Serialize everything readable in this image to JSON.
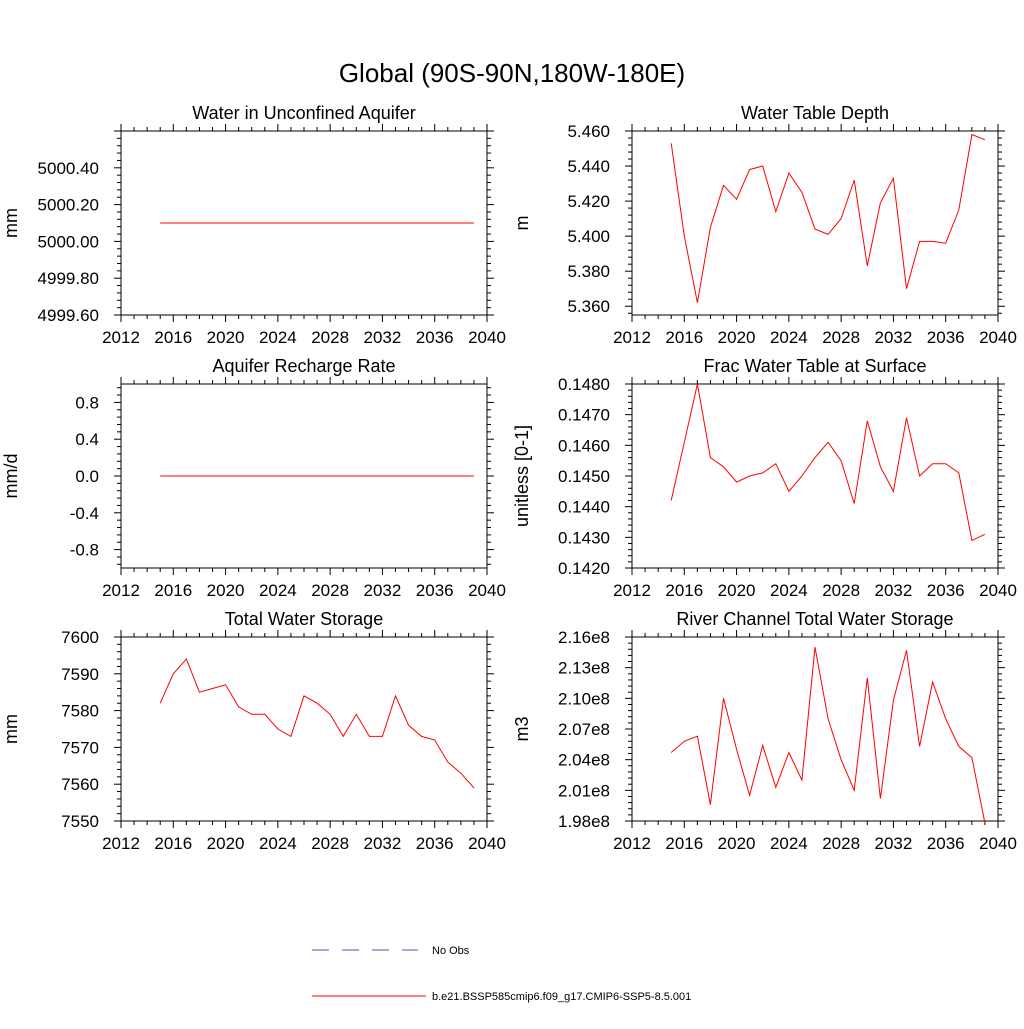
{
  "figure": {
    "title": "Global (90S-90N,180W-180E)"
  },
  "chart_data": [
    {
      "type": "line",
      "title": "Water in Unconfined Aquifer",
      "xlabel": "",
      "ylabel": "mm",
      "xlim": [
        2012,
        2040
      ],
      "ylim": [
        4999.6,
        5000.6
      ],
      "xticks": [
        2012,
        2016,
        2020,
        2024,
        2028,
        2032,
        2036,
        2040
      ],
      "yticks": [
        4999.6,
        4999.8,
        5000.0,
        5000.2,
        5000.4
      ],
      "ytick_labels": [
        "4999.60",
        "4999.80",
        "5000.00",
        "5000.20",
        "5000.40"
      ],
      "grid": false,
      "series": [
        {
          "color": "#ff0000",
          "x": [
            2015,
            2016,
            2017,
            2018,
            2019,
            2020,
            2021,
            2022,
            2023,
            2024,
            2025,
            2026,
            2027,
            2028,
            2029,
            2030,
            2031,
            2032,
            2033,
            2034,
            2035,
            2036,
            2037,
            2038,
            2039
          ],
          "y": [
            5000.1,
            5000.1,
            5000.1,
            5000.1,
            5000.1,
            5000.1,
            5000.1,
            5000.1,
            5000.1,
            5000.1,
            5000.1,
            5000.1,
            5000.1,
            5000.1,
            5000.1,
            5000.1,
            5000.1,
            5000.1,
            5000.1,
            5000.1,
            5000.1,
            5000.1,
            5000.1,
            5000.1,
            5000.1
          ]
        }
      ]
    },
    {
      "type": "line",
      "title": "Water Table Depth",
      "xlabel": "",
      "ylabel": "m",
      "xlim": [
        2012,
        2040
      ],
      "ylim": [
        5.355,
        5.46
      ],
      "xticks": [
        2012,
        2016,
        2020,
        2024,
        2028,
        2032,
        2036,
        2040
      ],
      "yticks": [
        5.36,
        5.38,
        5.4,
        5.42,
        5.44,
        5.46
      ],
      "ytick_labels": [
        "5.360",
        "5.380",
        "5.400",
        "5.420",
        "5.440",
        "5.460"
      ],
      "grid": false,
      "series": [
        {
          "color": "#ff0000",
          "x": [
            2015,
            2016,
            2017,
            2018,
            2019,
            2020,
            2021,
            2022,
            2023,
            2024,
            2025,
            2026,
            2027,
            2028,
            2029,
            2030,
            2031,
            2032,
            2033,
            2034,
            2035,
            2036,
            2037,
            2038,
            2039
          ],
          "y": [
            5.453,
            5.4,
            5.362,
            5.405,
            5.429,
            5.421,
            5.438,
            5.44,
            5.414,
            5.436,
            5.425,
            5.404,
            5.401,
            5.41,
            5.432,
            5.383,
            5.419,
            5.433,
            5.37,
            5.397,
            5.397,
            5.396,
            5.415,
            5.458,
            5.455
          ]
        }
      ]
    },
    {
      "type": "line",
      "title": "Aquifer Recharge Rate",
      "xlabel": "",
      "ylabel": "mm/d",
      "xlim": [
        2012,
        2040
      ],
      "ylim": [
        -1.0,
        1.0
      ],
      "xticks": [
        2012,
        2016,
        2020,
        2024,
        2028,
        2032,
        2036,
        2040
      ],
      "yticks": [
        -0.8,
        -0.4,
        0.0,
        0.4,
        0.8
      ],
      "ytick_labels": [
        "-0.8",
        "-0.4",
        "0.0",
        "0.4",
        "0.8"
      ],
      "grid": false,
      "series": [
        {
          "color": "#ff0000",
          "x": [
            2015,
            2016,
            2017,
            2018,
            2019,
            2020,
            2021,
            2022,
            2023,
            2024,
            2025,
            2026,
            2027,
            2028,
            2029,
            2030,
            2031,
            2032,
            2033,
            2034,
            2035,
            2036,
            2037,
            2038,
            2039
          ],
          "y": [
            0,
            0,
            0,
            0,
            0,
            0,
            0,
            0,
            0,
            0,
            0,
            0,
            0,
            0,
            0,
            0,
            0,
            0,
            0,
            0,
            0,
            0,
            0,
            0,
            0
          ]
        }
      ]
    },
    {
      "type": "line",
      "title": "Frac Water Table at Surface",
      "xlabel": "",
      "ylabel": "unitless [0-1]",
      "xlim": [
        2012,
        2040
      ],
      "ylim": [
        0.142,
        0.148
      ],
      "xticks": [
        2012,
        2016,
        2020,
        2024,
        2028,
        2032,
        2036,
        2040
      ],
      "yticks": [
        0.142,
        0.143,
        0.144,
        0.145,
        0.146,
        0.147,
        0.148
      ],
      "ytick_labels": [
        "0.1420",
        "0.1430",
        "0.1440",
        "0.1450",
        "0.1460",
        "0.1470",
        "0.1480"
      ],
      "grid": false,
      "series": [
        {
          "color": "#ff0000",
          "x": [
            2015,
            2016,
            2017,
            2018,
            2019,
            2020,
            2021,
            2022,
            2023,
            2024,
            2025,
            2026,
            2027,
            2028,
            2029,
            2030,
            2031,
            2032,
            2033,
            2034,
            2035,
            2036,
            2037,
            2038,
            2039
          ],
          "y": [
            0.1442,
            0.1461,
            0.148,
            0.1456,
            0.1453,
            0.1448,
            0.145,
            0.1451,
            0.1454,
            0.1445,
            0.145,
            0.1456,
            0.1461,
            0.1455,
            0.1441,
            0.1468,
            0.1453,
            0.1445,
            0.1469,
            0.145,
            0.1454,
            0.1454,
            0.1451,
            0.1429,
            0.1431
          ]
        }
      ]
    },
    {
      "type": "line",
      "title": "Total Water Storage",
      "xlabel": "",
      "ylabel": "mm",
      "xlim": [
        2012,
        2040
      ],
      "ylim": [
        7550,
        7600
      ],
      "xticks": [
        2012,
        2016,
        2020,
        2024,
        2028,
        2032,
        2036,
        2040
      ],
      "yticks": [
        7550,
        7560,
        7570,
        7580,
        7590,
        7600
      ],
      "ytick_labels": [
        "7550",
        "7560",
        "7570",
        "7580",
        "7590",
        "7600"
      ],
      "grid": false,
      "series": [
        {
          "color": "#ff0000",
          "x": [
            2015,
            2016,
            2017,
            2018,
            2019,
            2020,
            2021,
            2022,
            2023,
            2024,
            2025,
            2026,
            2027,
            2028,
            2029,
            2030,
            2031,
            2032,
            2033,
            2034,
            2035,
            2036,
            2037,
            2038,
            2039
          ],
          "y": [
            7582,
            7590,
            7594,
            7585,
            7586,
            7587,
            7581,
            7579,
            7579,
            7575,
            7573,
            7584,
            7582,
            7579,
            7573,
            7579,
            7573,
            7573,
            7584,
            7576,
            7573,
            7572,
            7566,
            7563,
            7559
          ]
        }
      ]
    },
    {
      "type": "line",
      "title": "River Channel Total Water Storage",
      "xlabel": "",
      "ylabel": "m3",
      "xlim": [
        2012,
        2040
      ],
      "ylim": [
        198000000,
        216000000
      ],
      "xticks": [
        2012,
        2016,
        2020,
        2024,
        2028,
        2032,
        2036,
        2040
      ],
      "yticks": [
        198000000,
        201000000,
        204000000,
        207000000,
        210000000,
        213000000,
        216000000
      ],
      "ytick_labels": [
        "1.98e8",
        "2.01e8",
        "2.04e8",
        "2.07e8",
        "2.10e8",
        "2.13e8",
        "2.16e8"
      ],
      "grid": false,
      "series": [
        {
          "color": "#ff0000",
          "x": [
            2015,
            2016,
            2017,
            2018,
            2019,
            2020,
            2021,
            2022,
            2023,
            2024,
            2025,
            2026,
            2027,
            2028,
            2029,
            2030,
            2031,
            2032,
            2033,
            2034,
            2035,
            2036,
            2037,
            2038,
            2039
          ],
          "y": [
            204700000,
            205800000,
            206300000,
            199600000,
            210000000,
            205000000,
            200500000,
            205400000,
            201300000,
            204700000,
            202000000,
            215000000,
            208000000,
            204000000,
            201000000,
            212000000,
            200200000,
            209800000,
            214700000,
            205300000,
            211600000,
            208000000,
            205300000,
            204200000,
            197800000
          ]
        }
      ]
    }
  ],
  "legend": {
    "placement": "bottom-center",
    "entries": [
      {
        "label": "No Obs",
        "color": "#4f4fb0",
        "style": "dashed"
      },
      {
        "label": "b.e21.BSSP585cmip6.f09_g17.CMIP6-SSP5-8.5.001",
        "color": "#ff0000",
        "style": "solid"
      }
    ]
  }
}
